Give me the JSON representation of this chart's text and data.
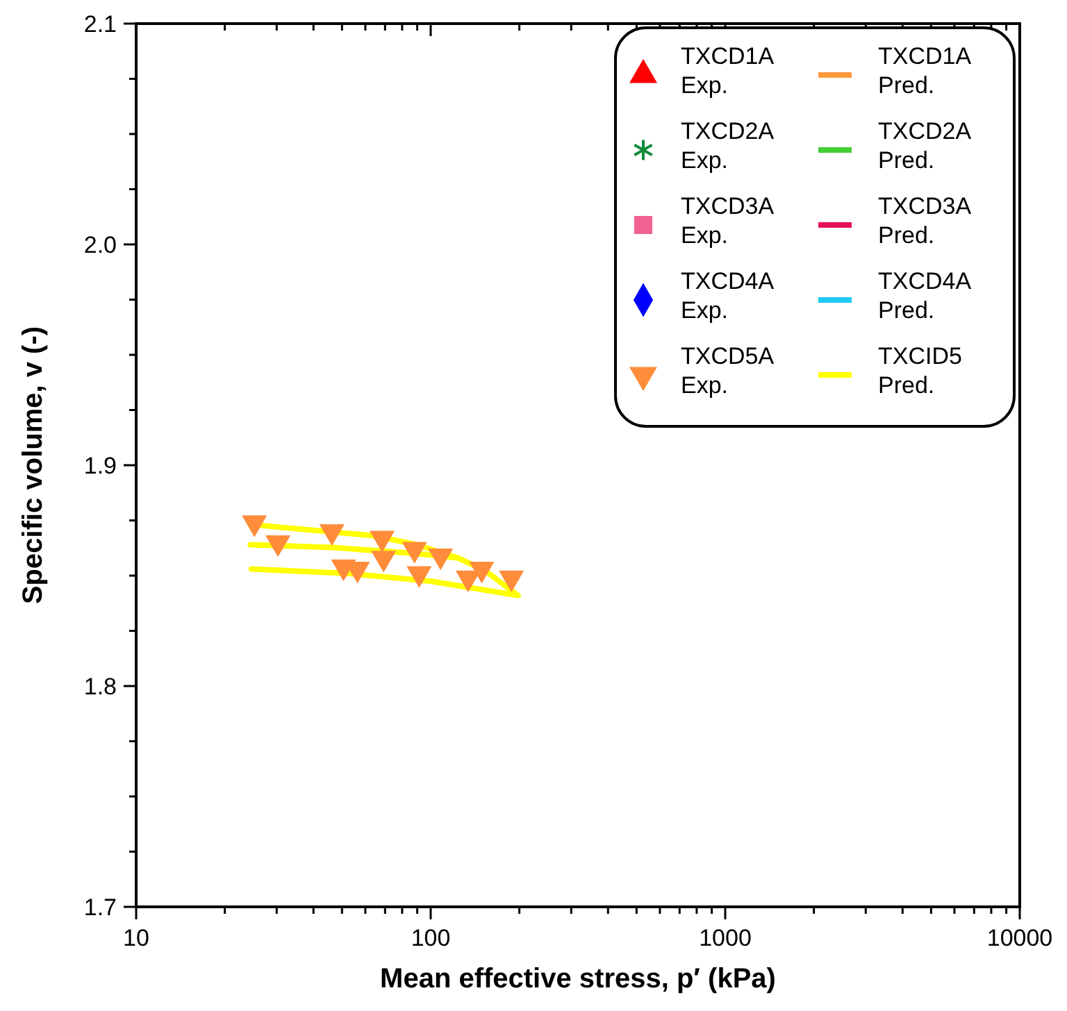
{
  "chart_data": {
    "type": "scatter",
    "xlabel": "Mean effective stress, p′ (kPa)",
    "ylabel": "Specific volume, v (-)",
    "log": "x",
    "xlim": [
      10,
      10000
    ],
    "xticks": [
      10,
      {
        "value": 20,
        "label": null
      },
      {
        "value": 30,
        "label": null
      },
      {
        "value": 40,
        "label": null
      },
      {
        "value": 50,
        "label": null
      },
      {
        "value": 60,
        "label": null
      },
      {
        "value": 70,
        "label": null
      },
      {
        "value": 80,
        "label": null
      },
      {
        "value": 90,
        "label": null
      },
      100,
      {
        "value": 200,
        "label": null
      },
      {
        "value": 300,
        "label": null
      },
      {
        "value": 400,
        "label": null
      },
      {
        "value": 500,
        "label": null
      },
      {
        "value": 600,
        "label": null
      },
      {
        "value": 700,
        "label": null
      },
      {
        "value": 800,
        "label": null
      },
      {
        "value": 900,
        "label": null
      },
      1000,
      {
        "value": 2000,
        "label": null
      },
      {
        "value": 3000,
        "label": null
      },
      {
        "value": 4000,
        "label": null
      },
      {
        "value": 5000,
        "label": null
      },
      {
        "value": 6000,
        "label": null
      },
      {
        "value": 7000,
        "label": null
      },
      {
        "value": 8000,
        "label": null
      },
      {
        "value": 9000,
        "label": null
      },
      10000
    ],
    "ylim": [
      1.7,
      2.1
    ],
    "yticks": [
      {
        "value": 1.7,
        "label": "1.7"
      },
      {
        "value": 1.725,
        "label": null
      },
      {
        "value": 1.75,
        "label": null
      },
      {
        "value": 1.775,
        "label": null
      },
      {
        "value": 1.8,
        "label": "1.8"
      },
      {
        "value": 1.825,
        "label": null
      },
      {
        "value": 1.85,
        "label": null
      },
      {
        "value": 1.875,
        "label": null
      },
      {
        "value": 1.9,
        "label": "1.9"
      },
      {
        "value": 1.925,
        "label": null
      },
      {
        "value": 1.95,
        "label": null
      },
      {
        "value": 1.975,
        "label": null
      },
      {
        "value": 2.0,
        "label": "2.0"
      },
      {
        "value": 2.025,
        "label": null
      },
      {
        "value": 2.05,
        "label": null
      },
      {
        "value": 2.075,
        "label": null
      },
      {
        "value": 2.1,
        "label": "2.1"
      }
    ],
    "grid": false,
    "legend": "top right",
    "series": [
      {
        "name": "TXCD1A\nExp.",
        "marker": "triangle",
        "color": "#ff0000"
      },
      {
        "name": "TXCD1A\nPred.",
        "type": "line",
        "color": "#ff9a3c"
      },
      {
        "name": "TXCD2A\nExp.",
        "marker": "star",
        "color": "#138a3b"
      },
      {
        "name": "TXCD2A\nPred.",
        "type": "line",
        "color": "#44cc33"
      },
      {
        "name": "TXCD3A\nExp.",
        "marker": "square",
        "color": "#f06292"
      },
      {
        "name": "TXCD3A\nPred.",
        "type": "line",
        "color": "#e8105a"
      },
      {
        "name": "TXCD4A\nExp.",
        "marker": "diamond",
        "color": "#0000ff"
      },
      {
        "name": "TXCD4A\nPred.",
        "type": "line",
        "color": "#1ec8f5"
      },
      {
        "name": "TXCD5A\nExp.",
        "marker": "triangle-down",
        "color": "#ff8c3a",
        "x": [
          25.2,
          30.3,
          46.2,
          50.6,
          56.4,
          68.4,
          69.2,
          88.1,
          91.4,
          108,
          134,
          149,
          188
        ],
        "values": [
          1.874,
          1.865,
          1.87,
          1.854,
          1.853,
          1.867,
          1.858,
          1.862,
          1.851,
          1.859,
          1.849,
          1.853,
          1.849
        ]
      },
      {
        "name": "TXCID5\nPred.",
        "type": "line",
        "color": "#ffff00",
        "x": [
          24.4,
          46.7,
          89.6,
          124,
          154,
          198,
          100,
          52,
          24.6
        ],
        "values": [
          1.864,
          1.8627,
          1.86,
          1.858,
          1.852,
          1.841,
          1.8475,
          1.851,
          1.853
        ]
      },
      {
        "type": "line",
        "color": "#ffff00",
        "x": [
          25.2,
          64.7,
          89.6,
          124
        ],
        "values": [
          1.873,
          1.868,
          1.864,
          1.858
        ]
      }
    ]
  }
}
